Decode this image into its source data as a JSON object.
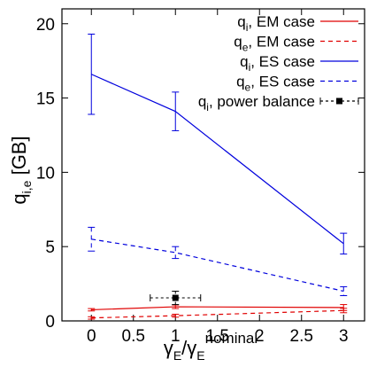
{
  "chart_data": {
    "type": "line",
    "x_ticks": [
      "0",
      "0.5",
      "1",
      "1.5",
      "2",
      "2.5",
      "3"
    ],
    "y_ticks": [
      "0",
      "5",
      "10",
      "15",
      "20"
    ],
    "xlim": [
      -0.35,
      3.25
    ],
    "ylim": [
      0,
      21
    ],
    "xlabel": {
      "main": "γ",
      "sub1": "E",
      "slash": "/γ",
      "sub2": "E",
      "sup": "nominal"
    },
    "ylabel": {
      "main": "q",
      "sub": "i,e",
      "unit": "[GB]"
    },
    "legend_position": "top-right",
    "grid": false,
    "series": [
      {
        "sym": "q",
        "sub": "i",
        "suffix": ", EM case",
        "color": "#e00000",
        "dash": "none",
        "x": [
          0,
          1,
          3
        ],
        "y": [
          0.75,
          0.95,
          0.9
        ],
        "yerr": [
          0.08,
          0.12,
          0.2
        ],
        "xerr": [
          0,
          0,
          0
        ]
      },
      {
        "sym": "q",
        "sub": "e",
        "suffix": ", EM case",
        "color": "#e00000",
        "dash": "5,4",
        "x": [
          0,
          1,
          3
        ],
        "y": [
          0.2,
          0.35,
          0.7
        ],
        "yerr": [
          0.08,
          0.1,
          0.15
        ],
        "xerr": [
          0,
          0,
          0
        ]
      },
      {
        "sym": "q",
        "sub": "i",
        "suffix": ", ES case",
        "color": "#0000dd",
        "dash": "none",
        "x": [
          0,
          1,
          3
        ],
        "y": [
          16.6,
          14.1,
          5.2
        ],
        "yerr": [
          2.7,
          1.3,
          0.7
        ],
        "xerr": [
          0,
          0,
          0
        ]
      },
      {
        "sym": "q",
        "sub": "e",
        "suffix": ", ES case",
        "color": "#0000dd",
        "dash": "5,4",
        "x": [
          0,
          1,
          3
        ],
        "y": [
          5.5,
          4.6,
          2.0
        ],
        "yerr": [
          0.8,
          0.4,
          0.3
        ],
        "xerr": [
          0,
          0,
          0
        ]
      },
      {
        "sym": "q",
        "sub": "i",
        "suffix": ", power balance",
        "color": "#000000",
        "dash": "3,3",
        "marker": "square",
        "x": [
          1
        ],
        "y": [
          1.55
        ],
        "yerr": [
          0.45
        ],
        "xerr": [
          0.3
        ]
      }
    ]
  }
}
